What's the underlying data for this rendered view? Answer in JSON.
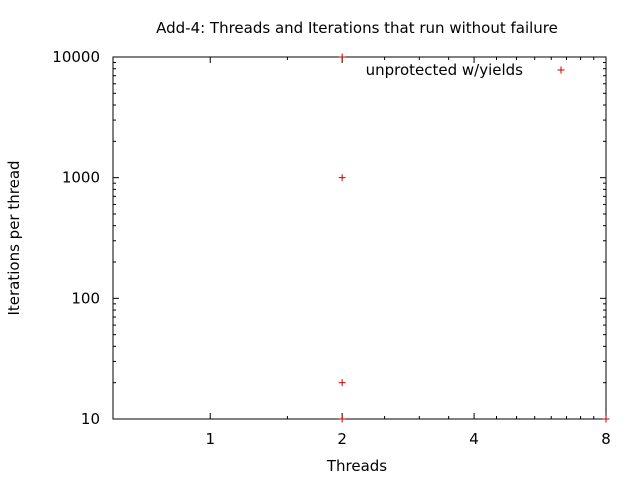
{
  "chart_data": {
    "type": "scatter",
    "title": "Add-4: Threads and Iterations that run without failure",
    "xlabel": "Threads",
    "ylabel": "Iterations per thread",
    "x_scale": "log2",
    "y_scale": "log10",
    "xlim": [
      0.6,
      8
    ],
    "ylim": [
      10,
      10000
    ],
    "x_ticks": [
      1,
      2,
      4,
      8
    ],
    "y_ticks": [
      10,
      100,
      1000,
      10000
    ],
    "legend": {
      "position": "top-right"
    },
    "grid": false,
    "series": [
      {
        "name": "unprotected w/yields",
        "color": "#cc0000",
        "marker": "plus",
        "points": [
          {
            "x": 2,
            "y": 10
          },
          {
            "x": 2,
            "y": 20
          },
          {
            "x": 2,
            "y": 1000
          },
          {
            "x": 2,
            "y": 10000
          },
          {
            "x": 8,
            "y": 10
          }
        ]
      }
    ]
  }
}
